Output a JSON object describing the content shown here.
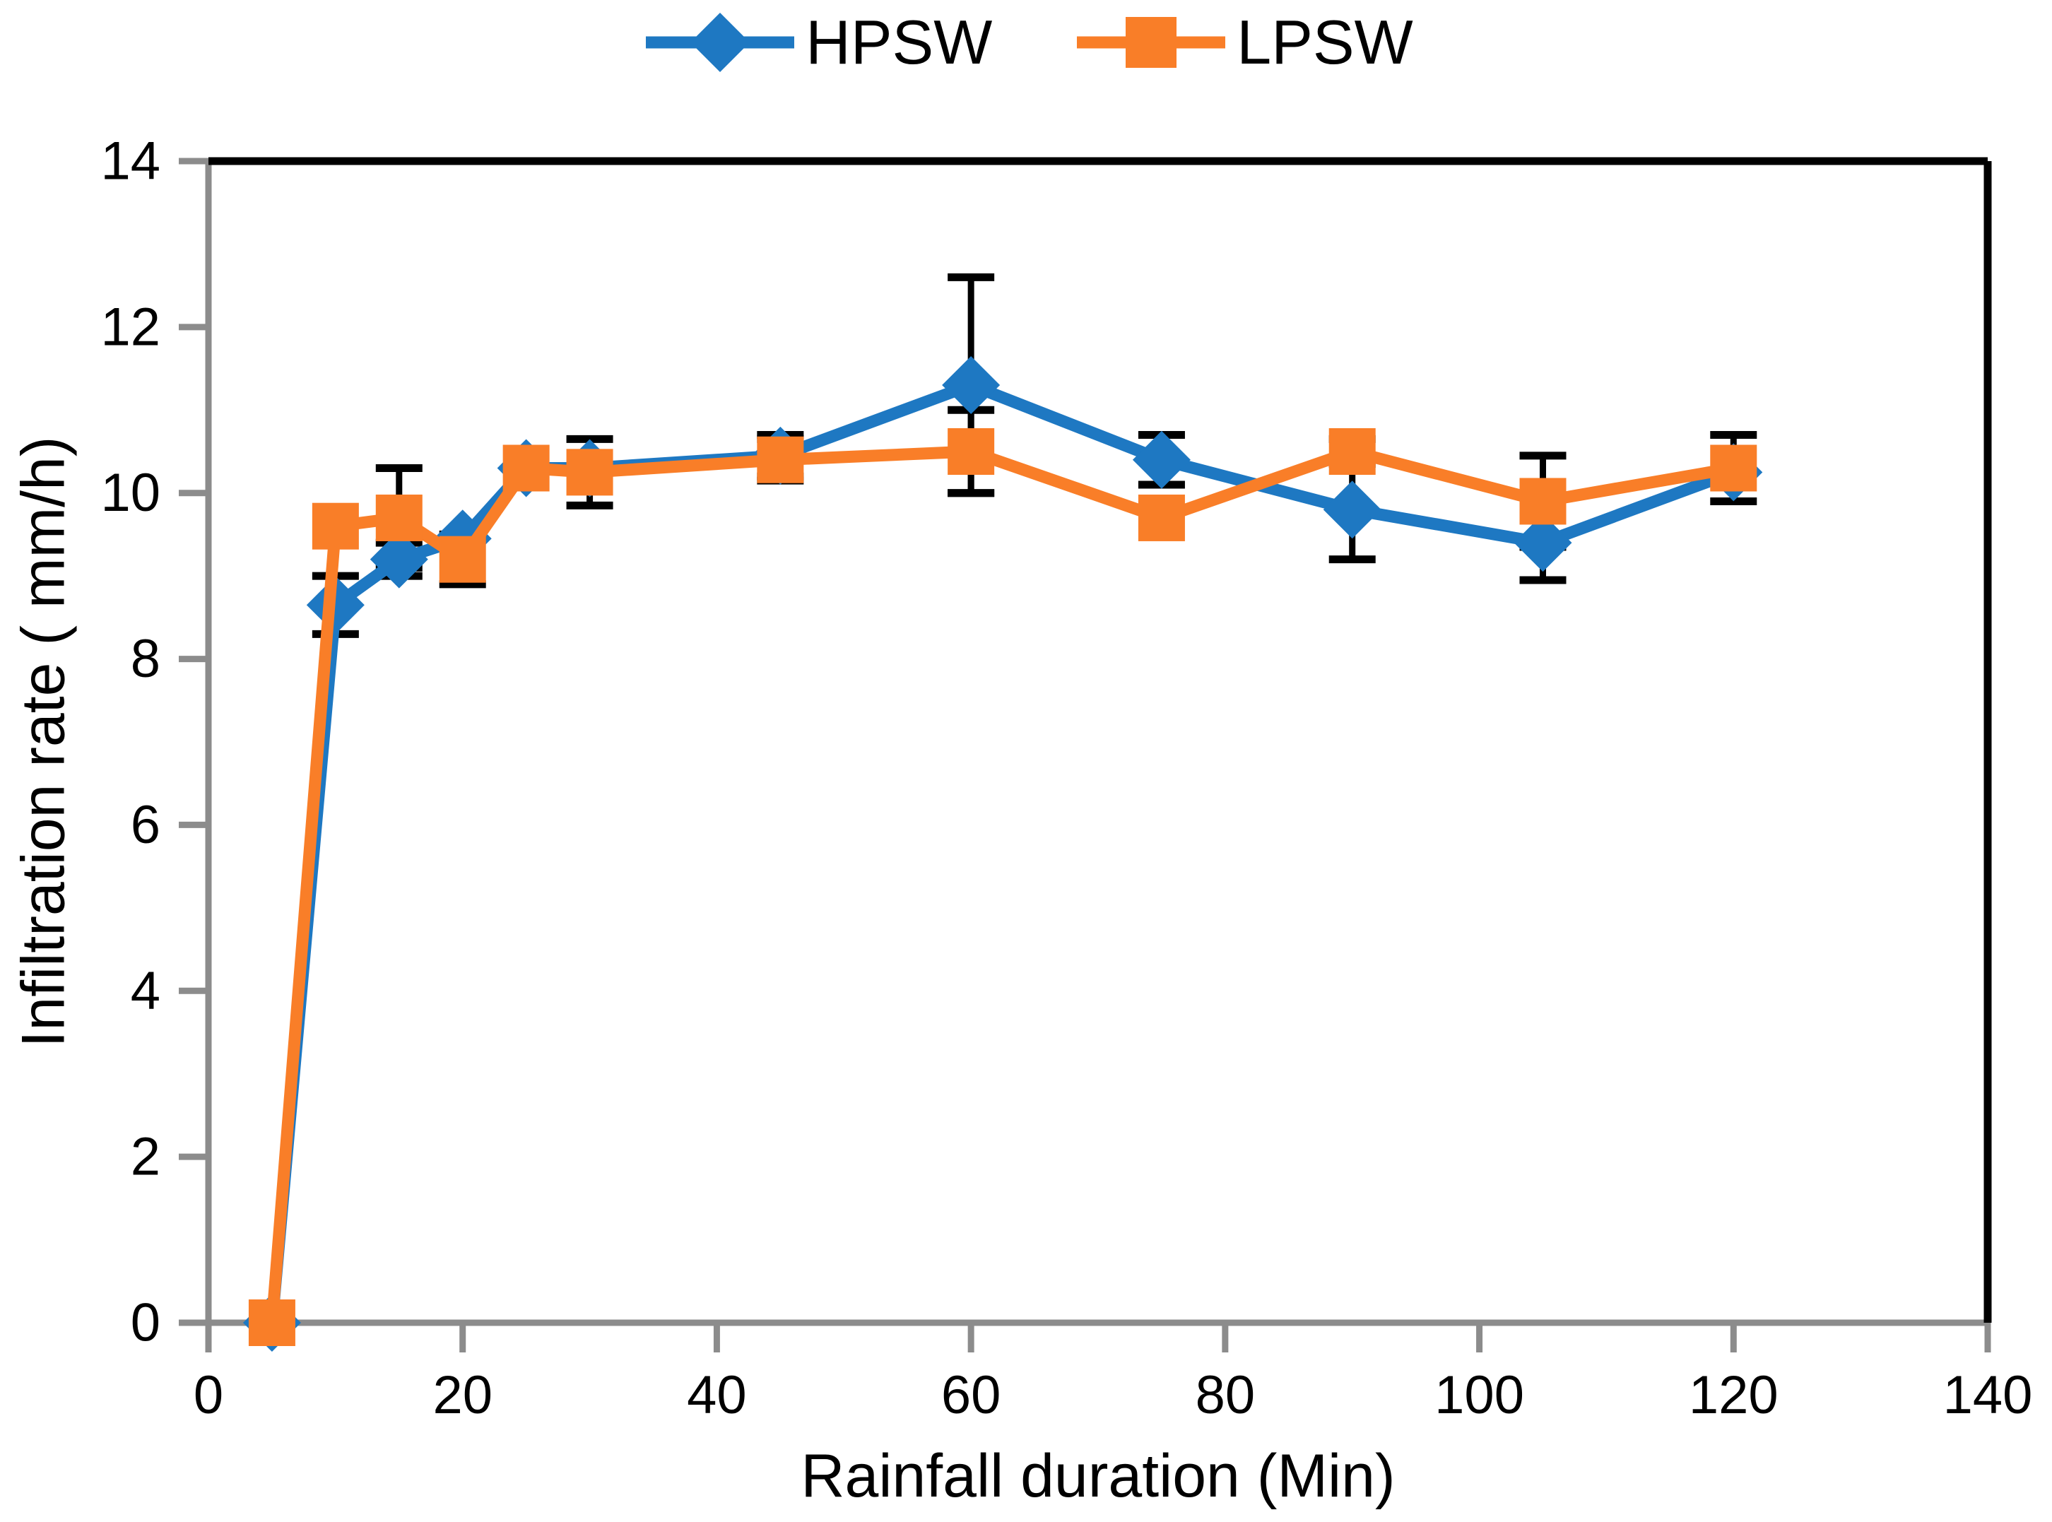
{
  "chart_data": {
    "type": "line",
    "title": "",
    "xlabel": "Rainfall duration (Min)",
    "ylabel": "Infiltration rate ( mm/h)",
    "x": [
      5,
      10,
      15,
      20,
      25,
      30,
      45,
      60,
      75,
      90,
      105,
      120
    ],
    "series": [
      {
        "name": "HPSW",
        "color": "#1E78C2",
        "marker": "diamond",
        "values": [
          0,
          8.65,
          9.2,
          9.45,
          10.3,
          10.3,
          10.45,
          11.3,
          10.4,
          9.8,
          9.4,
          10.25
        ],
        "errors": [
          0,
          0.35,
          0.2,
          0,
          0,
          0,
          0.25,
          1.3,
          0.3,
          0.6,
          0.45,
          0
        ]
      },
      {
        "name": "LPSW",
        "color": "#F97E28",
        "marker": "square",
        "values": [
          0,
          9.6,
          9.7,
          9.2,
          10.3,
          10.25,
          10.4,
          10.5,
          9.7,
          10.5,
          9.9,
          10.3
        ],
        "errors": [
          0,
          0,
          0.6,
          0.3,
          0,
          0.4,
          0.25,
          0.5,
          0,
          0.15,
          0.55,
          0.4
        ]
      }
    ],
    "xlim": [
      0,
      140
    ],
    "ylim": [
      0,
      14
    ],
    "x_ticks": [
      0,
      20,
      40,
      60,
      80,
      100,
      120,
      140
    ],
    "y_ticks": [
      0,
      2,
      4,
      6,
      8,
      10,
      12,
      14
    ],
    "grid": "off",
    "legend_position": "top-center",
    "axis_color": "#8C8C8C",
    "frame_color": "#000000",
    "error_bar_color": "#000000",
    "tick_label_color": "#000000",
    "tick_font_size": 76
  },
  "legend": {
    "items": [
      {
        "label": "HPSW"
      },
      {
        "label": "LPSW"
      }
    ]
  }
}
